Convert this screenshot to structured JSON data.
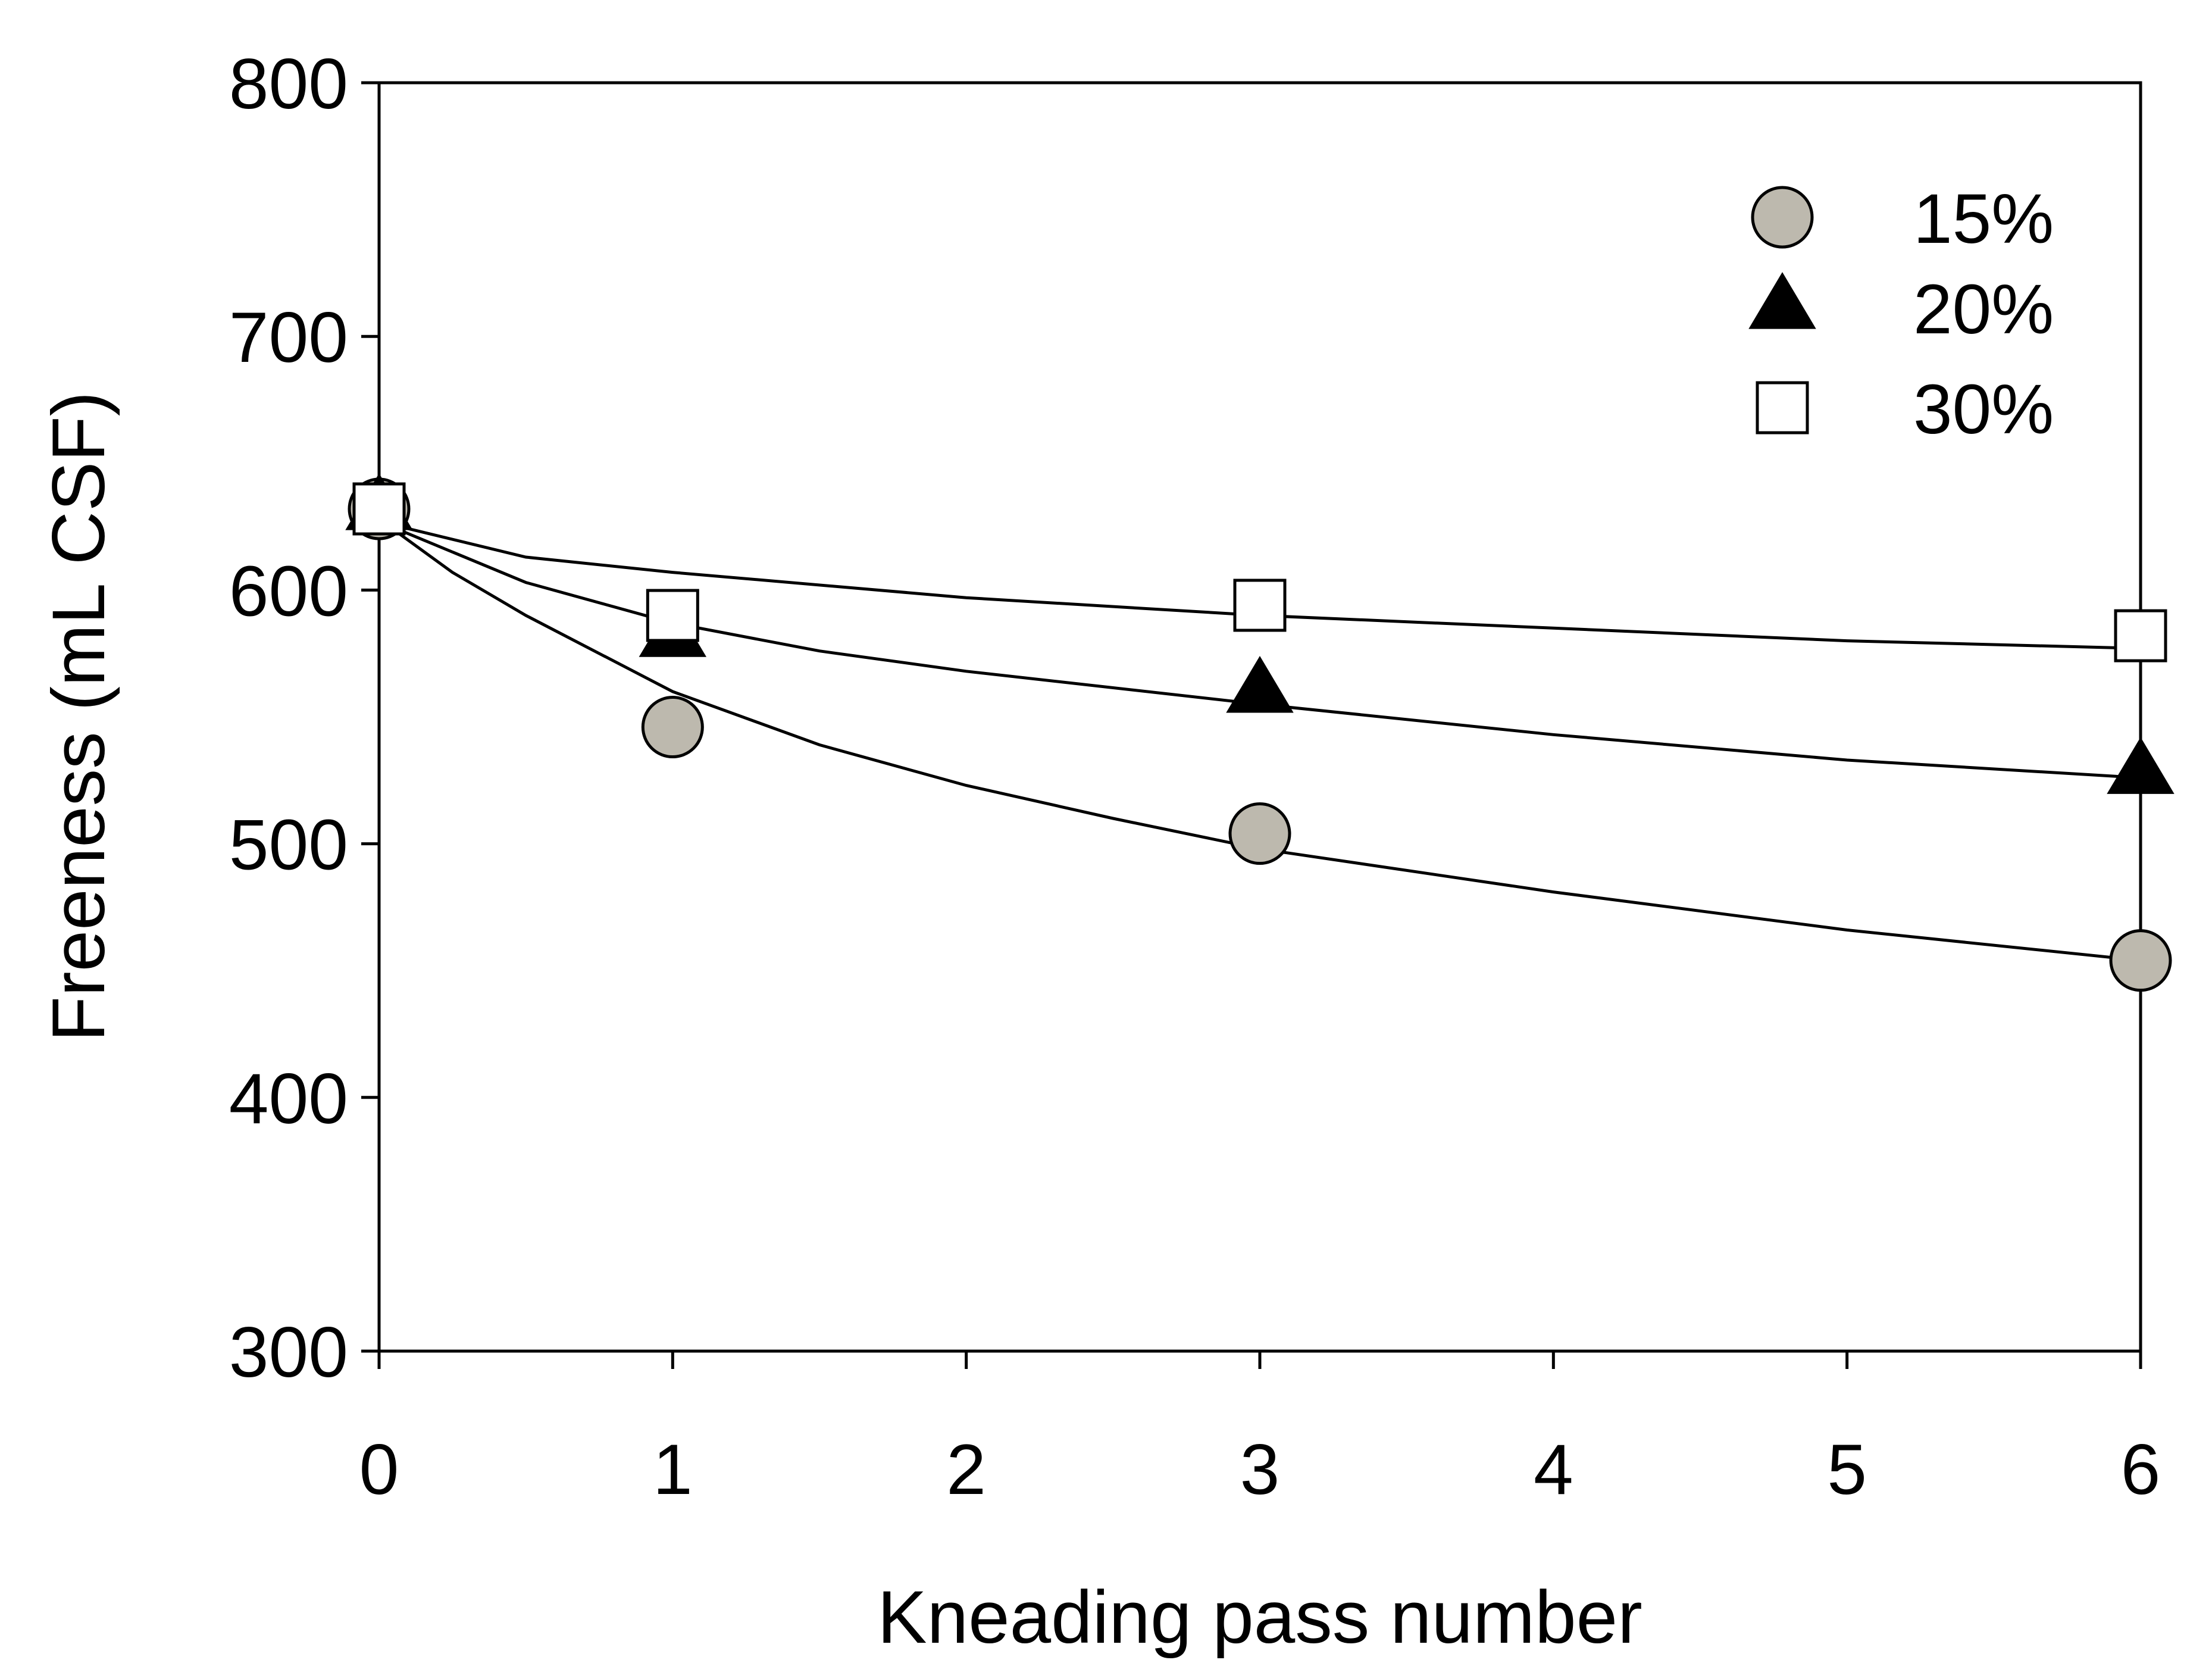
{
  "chart_data": {
    "type": "scatter",
    "xlabel": "Kneading pass number",
    "ylabel": "Freeness (mL CSF)",
    "xlim": [
      0,
      6
    ],
    "ylim": [
      300,
      800
    ],
    "xticks": [
      "0",
      "1",
      "2",
      "3",
      "4",
      "5",
      "6"
    ],
    "yticks": [
      "300",
      "400",
      "500",
      "600",
      "700",
      "800"
    ],
    "grid": false,
    "legend_position": "top-right",
    "series": [
      {
        "name": "15%",
        "marker": "circle",
        "fill": "#bdb9ae",
        "x": [
          0,
          1,
          3,
          6
        ],
        "y": [
          632,
          546,
          504,
          454
        ],
        "trend": [
          [
            0,
            628
          ],
          [
            0.25,
            607
          ],
          [
            0.5,
            590
          ],
          [
            1,
            560
          ],
          [
            1.5,
            539
          ],
          [
            2,
            523
          ],
          [
            2.5,
            510
          ],
          [
            3,
            498
          ],
          [
            4,
            481
          ],
          [
            5,
            466
          ],
          [
            6,
            454
          ]
        ]
      },
      {
        "name": "20%",
        "marker": "triangle",
        "fill": "#000000",
        "x": [
          0,
          1,
          3,
          6
        ],
        "y": [
          632,
          582,
          560,
          528
        ],
        "trend": [
          [
            0,
            627
          ],
          [
            0.5,
            603
          ],
          [
            1,
            587
          ],
          [
            1.5,
            576
          ],
          [
            2,
            568
          ],
          [
            3,
            555
          ],
          [
            4,
            543
          ],
          [
            5,
            533
          ],
          [
            6,
            526
          ]
        ]
      },
      {
        "name": "30%",
        "marker": "square",
        "fill": "#ffffff",
        "x": [
          0,
          1,
          3,
          6
        ],
        "y": [
          632,
          590,
          594,
          582
        ],
        "trend": [
          [
            0,
            627
          ],
          [
            0.5,
            613
          ],
          [
            1,
            607
          ],
          [
            2,
            597
          ],
          [
            3,
            590
          ],
          [
            4,
            585
          ],
          [
            5,
            580
          ],
          [
            6,
            577
          ]
        ]
      }
    ]
  }
}
